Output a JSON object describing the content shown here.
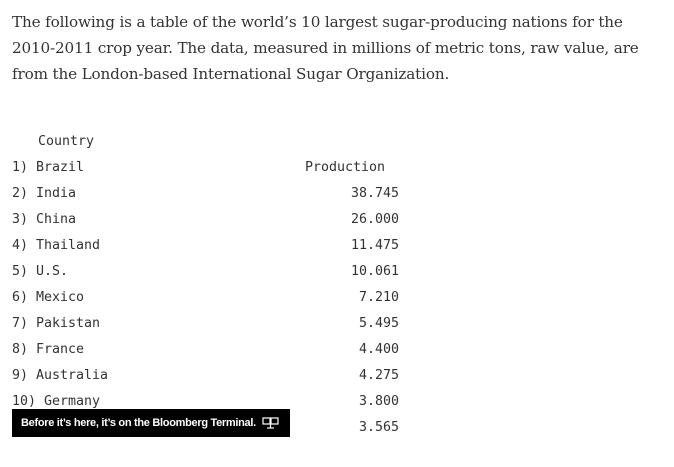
{
  "intro": {
    "text": "The following is a table of the world’s 10 largest sugar-producing nations for the 2010-2011 crop year. The data, measured in millions of metric tons, raw value, are from the London-based International Sugar Organization."
  },
  "table": {
    "header_country": "Country",
    "header_production": "Production",
    "rows": [
      {
        "label": "1) Brazil",
        "value": "38.745"
      },
      {
        "label": "2) India",
        "value": "26.000"
      },
      {
        "label": "3) China",
        "value": "11.475"
      },
      {
        "label": "4) Thailand",
        "value": "10.061"
      },
      {
        "label": "5) U.S.",
        "value": "7.210"
      },
      {
        "label": "6) Mexico",
        "value": "5.495"
      },
      {
        "label": "7) Pakistan",
        "value": "4.400"
      },
      {
        "label": "8) France",
        "value": "4.275"
      },
      {
        "label": "9) Australia",
        "value": "3.800"
      },
      {
        "label": "10) Germany",
        "value": "3.565"
      }
    ]
  },
  "banner": {
    "text": "Before it’s here, it’s on the Bloomberg Terminal.",
    "icon": "terminal-icon"
  }
}
